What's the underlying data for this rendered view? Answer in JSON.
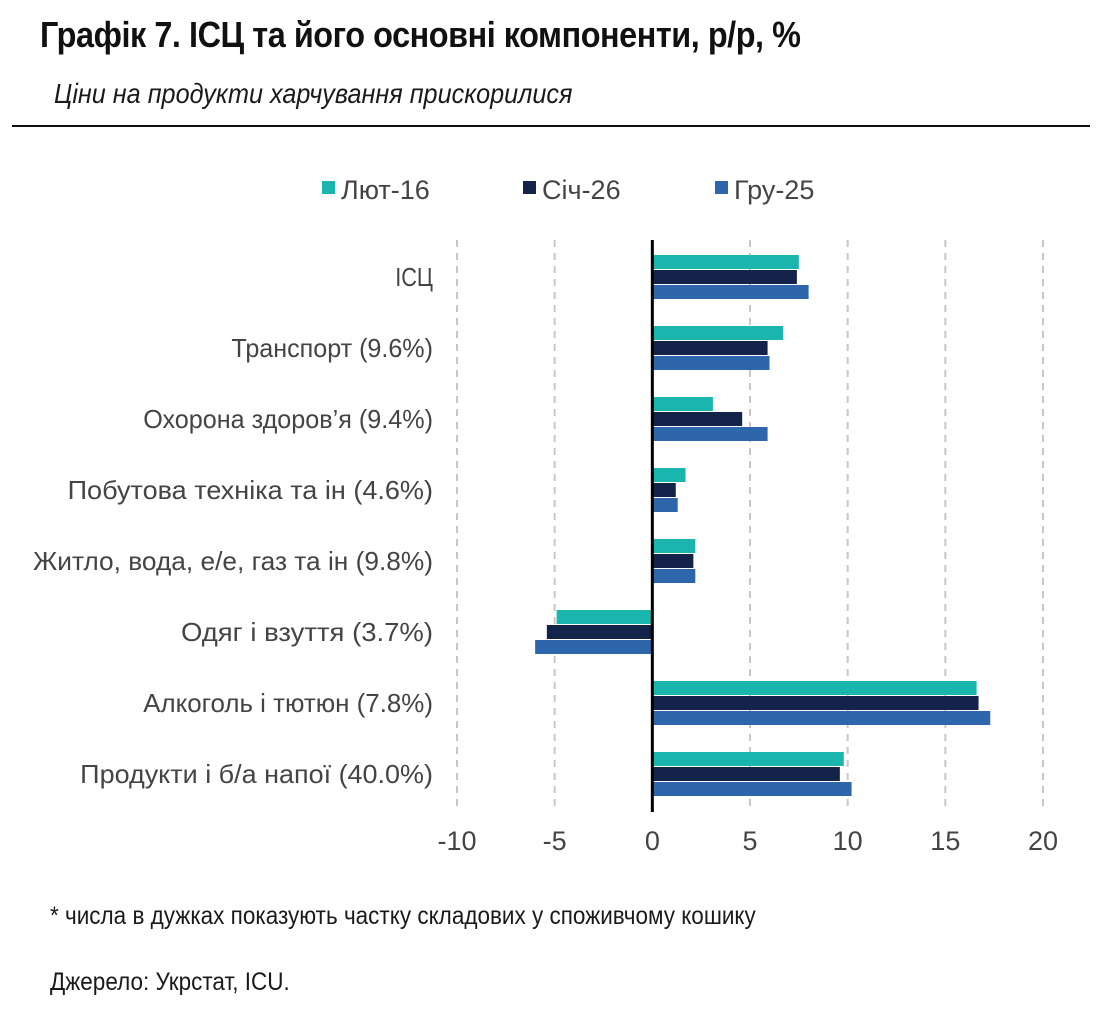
{
  "header": {
    "title": "Графік 7. ІСЦ та його основні компоненти, р/р, %",
    "subtitle": "Ціни на продукти харчування прискорилися"
  },
  "footer": {
    "footnote": "* числа в дужках показують частку складових у споживчому кошику",
    "source": "Джерело: Укрстат, ICU."
  },
  "chart_data": {
    "type": "bar",
    "orientation": "horizontal",
    "title": "Графік 7. ІСЦ та його основні компоненти, р/р, %",
    "subtitle": "Ціни на продукти харчування прискорилися",
    "categories": [
      "ІСЦ",
      "Транспорт (9.6%)",
      "Охорона здоров’я (9.4%)",
      "Побутова техніка та ін (4.6%)",
      "Житло, вода, е/е, газ та ін (9.8%)",
      "Одяг і взуття (3.7%)",
      "Алкоголь і тютюн (7.8%)",
      "Продукти і б/а напої (40.0%)"
    ],
    "series": [
      {
        "name": "Лют-16",
        "color": "#1ab5ad",
        "values": [
          7.5,
          6.7,
          3.1,
          1.7,
          2.2,
          -4.9,
          16.6,
          9.8
        ]
      },
      {
        "name": "Січ-26",
        "color": "#14234a",
        "values": [
          7.4,
          5.9,
          4.6,
          1.2,
          2.1,
          -5.4,
          16.7,
          9.6
        ]
      },
      {
        "name": "Гру-25",
        "color": "#2e66ac",
        "values": [
          8.0,
          6.0,
          5.9,
          1.3,
          2.2,
          -6.0,
          17.3,
          10.2
        ]
      }
    ],
    "xlim": [
      -10,
      20
    ],
    "xticks": [
      -10,
      -5,
      0,
      5,
      10,
      15,
      20
    ],
    "tick_labels": [
      "-10",
      "-5",
      "0",
      "5",
      "10",
      "15",
      "20"
    ],
    "grid": "vertical dashed",
    "legend": "top-center",
    "xlabel": "",
    "ylabel": ""
  }
}
